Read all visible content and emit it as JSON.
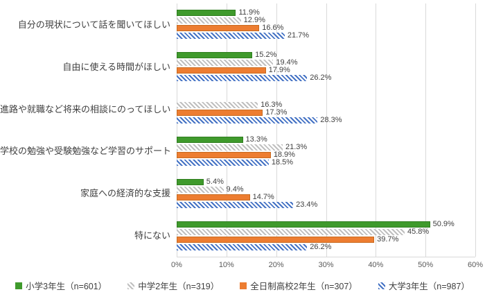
{
  "chart_data": {
    "type": "bar",
    "orientation": "horizontal",
    "title": "",
    "categories": [
      "自分の現状について話を聞いてほしい",
      "自由に使える時間がほしい",
      "進路や就職など将来の相談にのってほしい",
      "学校の勉強や受験勉強など学習のサポート",
      "家庭への経済的な支援",
      "特にない"
    ],
    "series": [
      {
        "name": "小学3年生（n=601）",
        "pattern": "solid",
        "color": "#3f9a2c",
        "border_color": "#2f7d1f",
        "values": [
          11.9,
          15.2,
          null,
          13.3,
          5.4,
          50.9
        ]
      },
      {
        "name": "中学2年生（n=319）",
        "pattern": "hatch",
        "color": "#bfbfbf",
        "values": [
          12.9,
          19.4,
          16.3,
          21.3,
          9.4,
          45.8
        ]
      },
      {
        "name": "全日制高校2年生（n=307）",
        "pattern": "solid",
        "color": "#ed7d31",
        "border_color": "#c86a1f",
        "values": [
          16.6,
          17.9,
          17.3,
          18.9,
          14.7,
          39.7
        ]
      },
      {
        "name": "大学3年生（n=987）",
        "pattern": "hatch",
        "color": "#4472c4",
        "values": [
          21.7,
          26.2,
          28.3,
          18.5,
          23.4,
          26.2
        ]
      }
    ],
    "xlim": [
      0,
      60
    ],
    "xtick_values": [
      0,
      10,
      20,
      30,
      40,
      50,
      60
    ],
    "xtick_labels": [
      "0%",
      "10%",
      "20%",
      "30%",
      "40%",
      "50%",
      "60%"
    ],
    "value_suffix": "%",
    "grid": true,
    "legend_position": "bottom",
    "gridline_color": "#d9d9d9"
  }
}
